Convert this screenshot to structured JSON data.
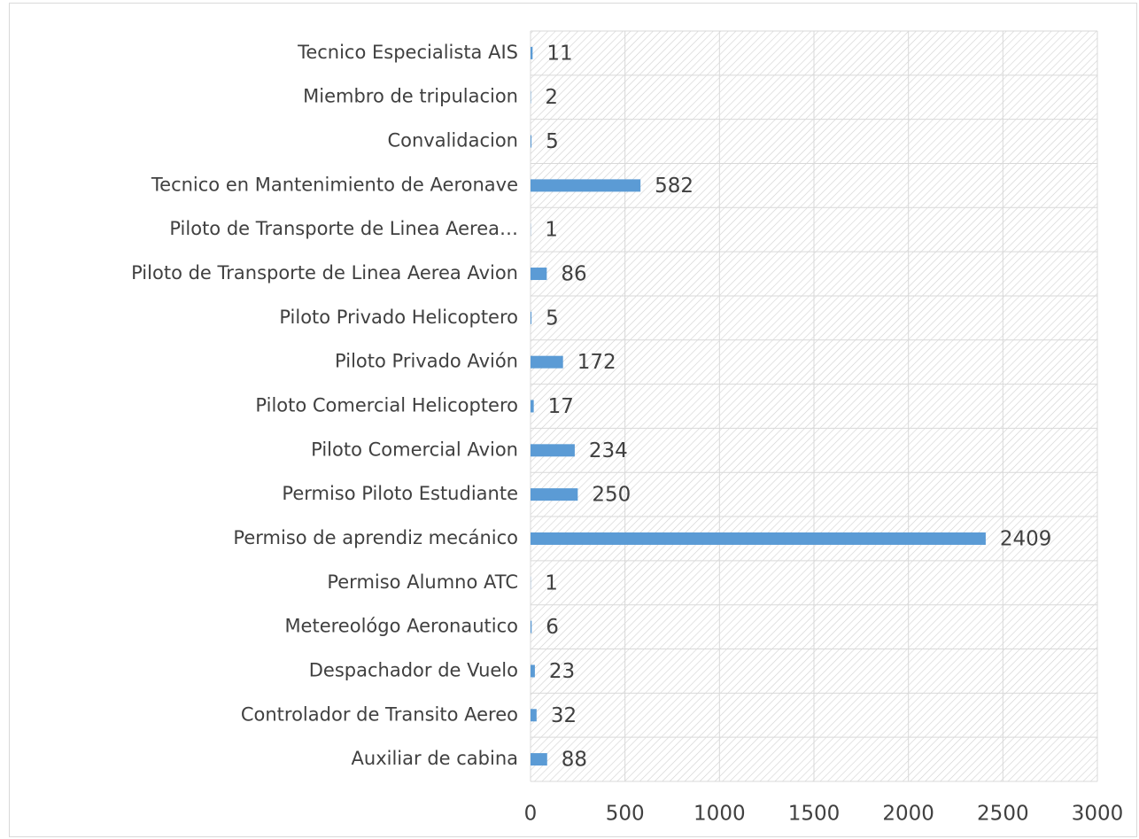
{
  "chart_data": {
    "type": "barh",
    "categories": [
      "Tecnico Especialista AIS",
      "Miembro de tripulacion",
      "Convalidacion",
      "Tecnico en Mantenimiento de Aeronave",
      "Piloto de Transporte de Linea Aerea…",
      "Piloto de Transporte de Linea Aerea Avion",
      "Piloto Privado Helicoptero",
      "Piloto Privado Avión",
      "Piloto Comercial Helicoptero",
      "Piloto Comercial Avion",
      "Permiso Piloto Estudiante",
      "Permiso de aprendiz mecánico",
      "Permiso Alumno ATC",
      "Metereológo Aeronautico",
      "Despachador de Vuelo",
      "Controlador de Transito Aereo",
      "Auxiliar de cabina"
    ],
    "values": [
      11,
      2,
      5,
      582,
      1,
      86,
      5,
      172,
      17,
      234,
      250,
      2409,
      1,
      6,
      23,
      32,
      88
    ],
    "color": "#5b9bd5",
    "xlim": [
      0,
      3000
    ],
    "xticks": [
      0,
      500,
      1000,
      1500,
      2000,
      2500,
      3000
    ],
    "grid": true
  }
}
